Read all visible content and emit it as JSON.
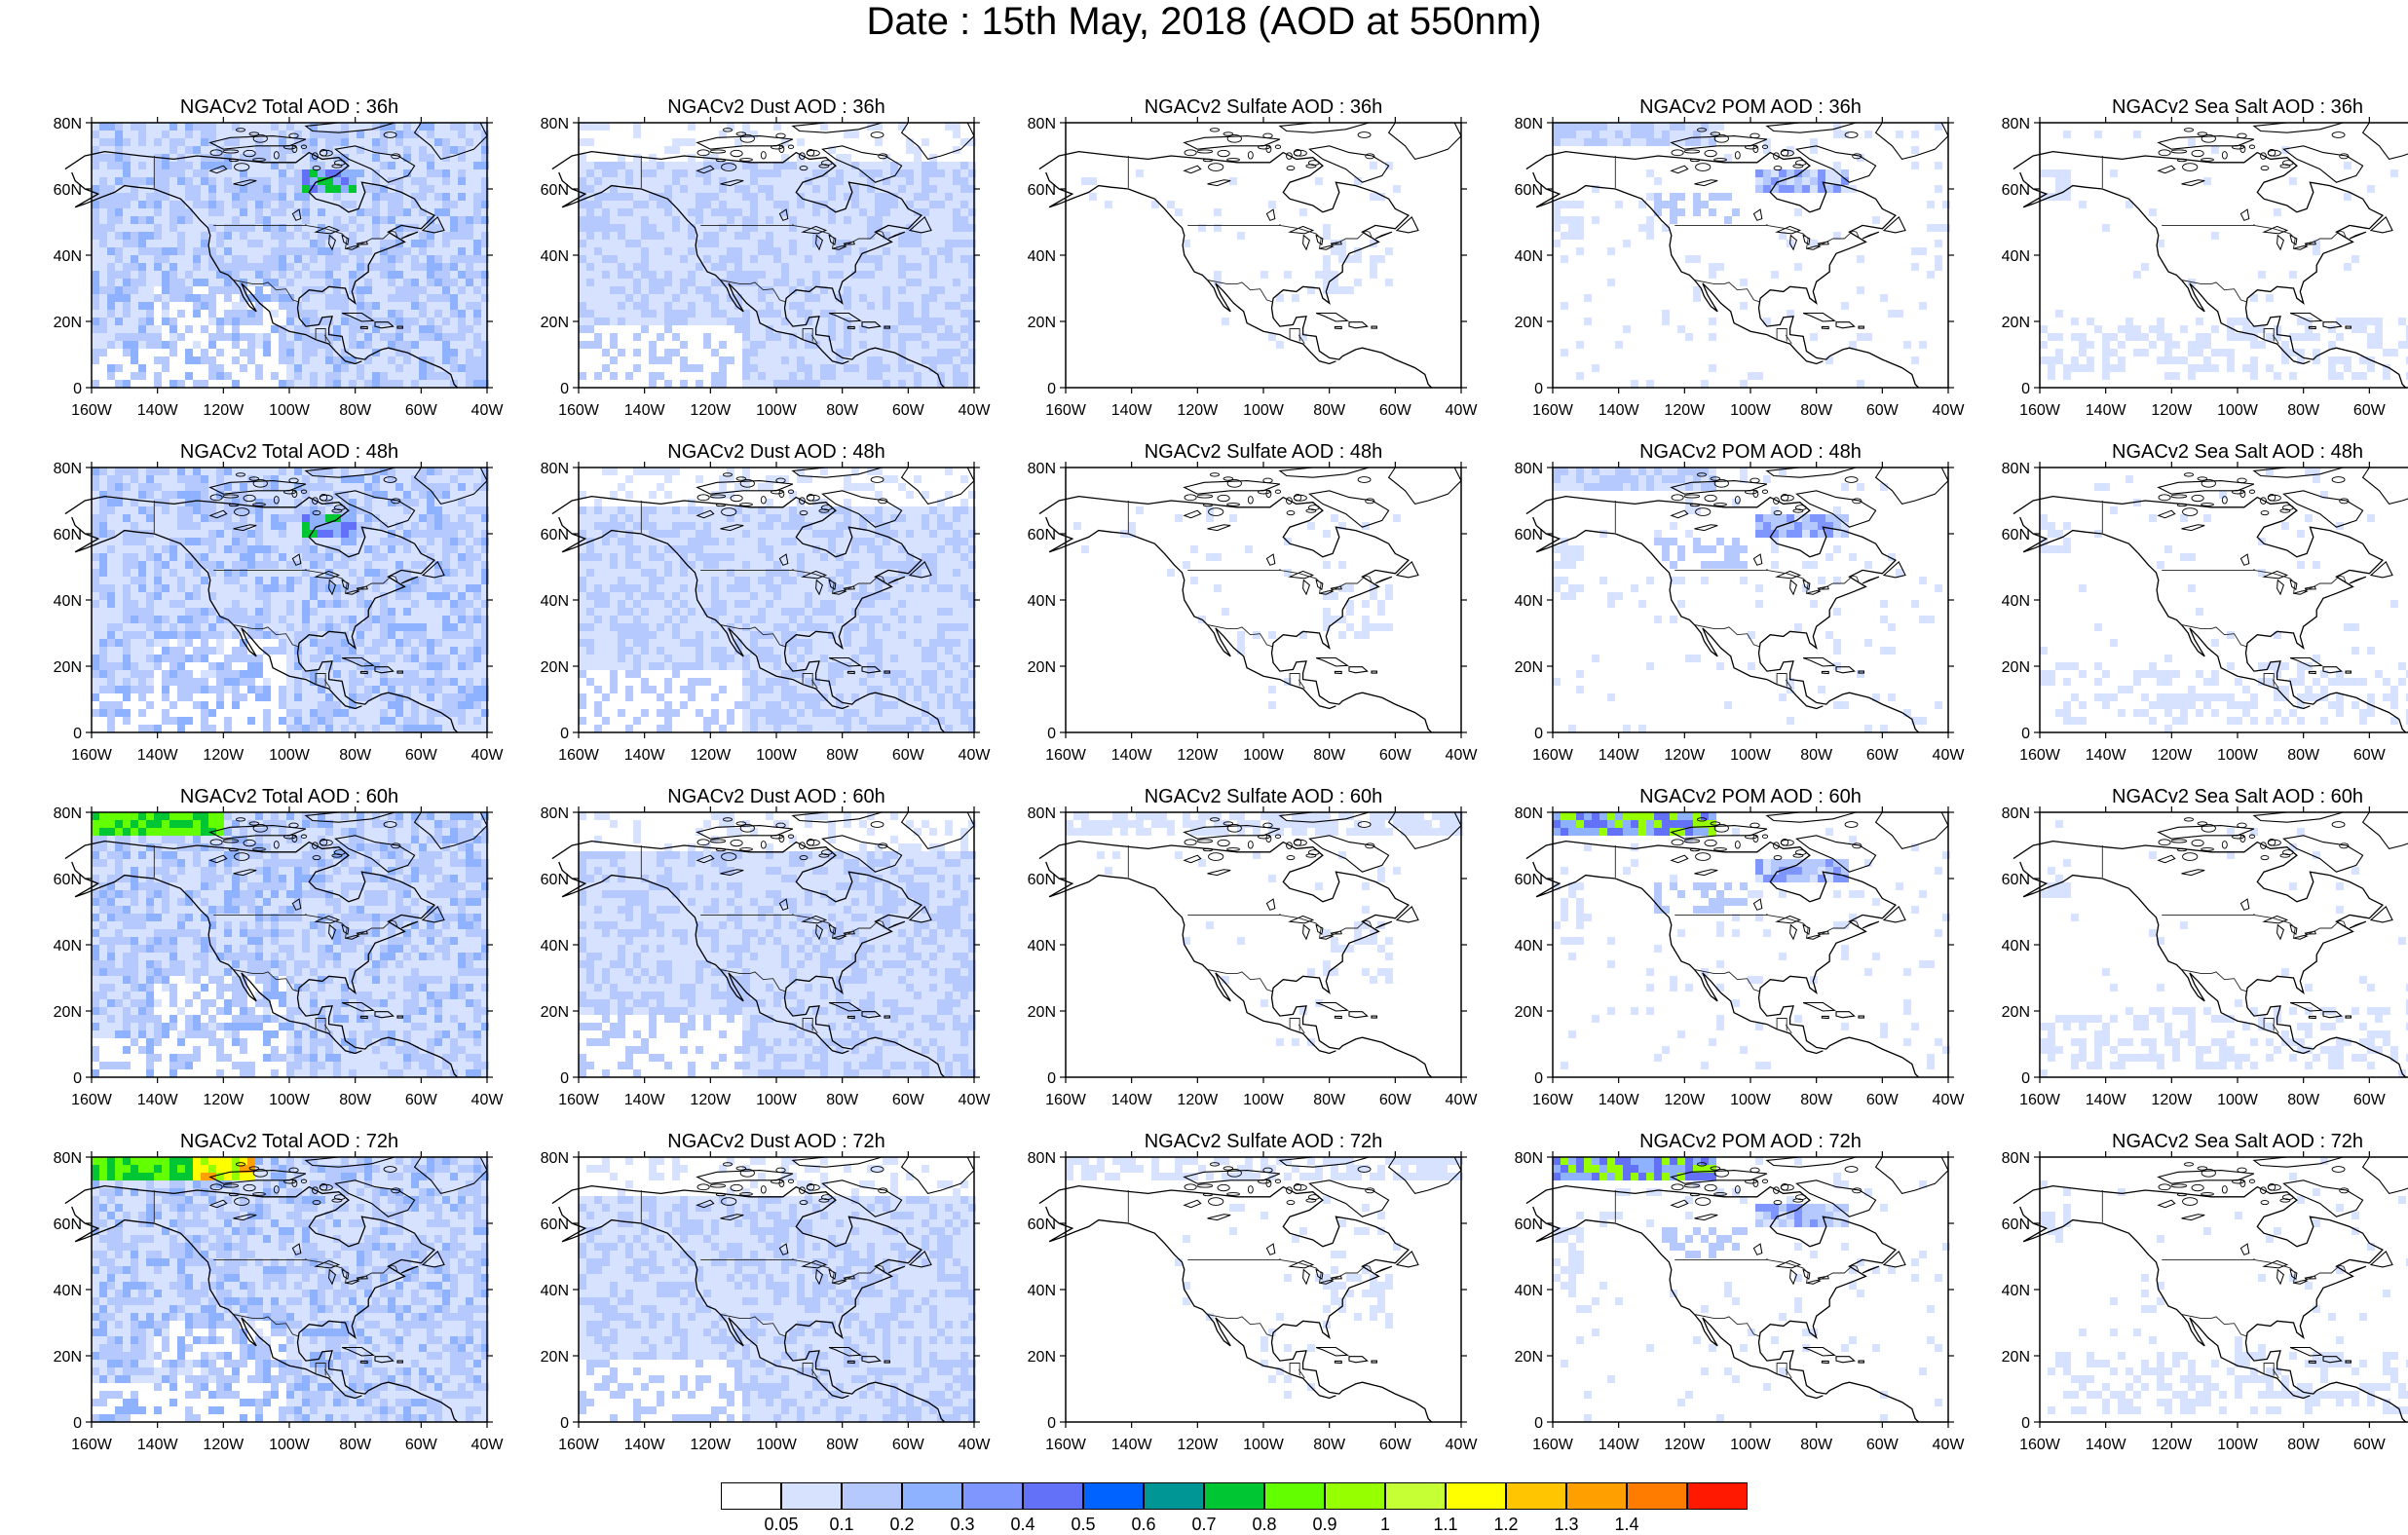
{
  "title": "Date : 15th May, 2018 (AOD at 550nm)",
  "map": {
    "xticks": [
      "160W",
      "140W",
      "120W",
      "100W",
      "80W",
      "60W",
      "40W"
    ],
    "yticks": [
      "0",
      "20N",
      "40N",
      "60N",
      "80N"
    ]
  },
  "panels": [
    [
      "NGACv2 Total AOD : 36h",
      "NGACv2 Dust AOD : 36h",
      "NGACv2 Sulfate AOD : 36h",
      "NGACv2 POM AOD : 36h",
      "NGACv2 Sea Salt AOD : 36h"
    ],
    [
      "NGACv2 Total AOD : 48h",
      "NGACv2 Dust AOD : 48h",
      "NGACv2 Sulfate AOD : 48h",
      "NGACv2 POM AOD : 48h",
      "NGACv2 Sea Salt AOD : 48h"
    ],
    [
      "NGACv2 Total AOD : 60h",
      "NGACv2 Dust AOD : 60h",
      "NGACv2 Sulfate AOD : 60h",
      "NGACv2 POM AOD : 60h",
      "NGACv2 Sea Salt AOD : 60h"
    ],
    [
      "NGACv2 Total AOD : 72h",
      "NGACv2 Dust AOD : 72h",
      "NGACv2 Sulfate AOD : 72h",
      "NGACv2 POM AOD : 72h",
      "NGACv2 Sea Salt  AOD : 72h"
    ]
  ],
  "colorbar": {
    "labels": [
      "0.05",
      "0.1",
      "0.2",
      "0.3",
      "0.4",
      "0.5",
      "0.6",
      "0.7",
      "0.8",
      "0.9",
      "1",
      "1.1",
      "1.2",
      "1.3",
      "1.4"
    ],
    "colors": [
      "#ffffff",
      "#d6e2ff",
      "#b5c9ff",
      "#8eb2ff",
      "#7f96ff",
      "#6370f8",
      "#0063ff",
      "#009696",
      "#00c633",
      "#63ff00",
      "#96ff00",
      "#c6ff33",
      "#ffff00",
      "#ffc600",
      "#ffa000",
      "#ff7c00",
      "#ff1900"
    ]
  }
}
